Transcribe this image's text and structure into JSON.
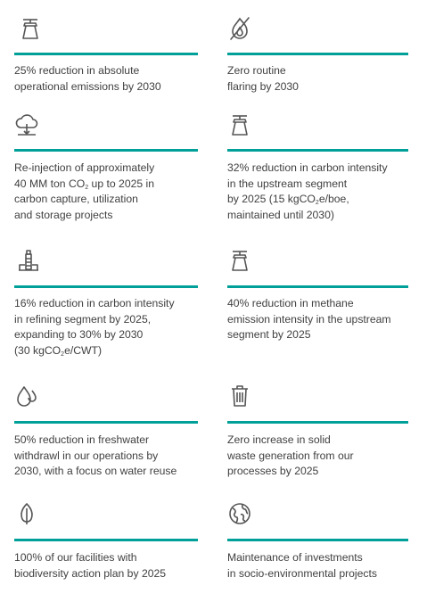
{
  "accent_color": "#00a099",
  "icon_color": "#555555",
  "cards": [
    {
      "icon": "chimney-flare-icon",
      "text": "25% reduction in absolute\noperational emissions by 2030"
    },
    {
      "icon": "no-flame-icon",
      "text": "Zero routine\nflaring by 2030"
    },
    {
      "icon": "cloud-injection-icon",
      "text_parts": [
        "Re-injection of approximately\n40 MM ton CO",
        "2",
        " up to 2025 in\ncarbon capture, utilization\nand storage projects"
      ]
    },
    {
      "icon": "chimney-icon",
      "text_parts": [
        "32% reduction in carbon intensity\nin the upstream segment\nby 2025 (15 kgCO",
        "2",
        "e/boe,\nmaintained until 2030)"
      ]
    },
    {
      "icon": "refinery-tower-icon",
      "text_parts": [
        "16% reduction in carbon intensity\nin refining segment by 2025,\nexpanding to 30% by 2030\n(30 kgCO",
        "2",
        "e/CWT)"
      ]
    },
    {
      "icon": "methane-chimney-icon",
      "text": "40% reduction in methane\nemission intensity in the upstream\nsegment by 2025"
    },
    {
      "icon": "water-drops-icon",
      "text": "50% reduction in freshwater\nwithdrawl in our operations by\n2030, with a focus on water reuse"
    },
    {
      "icon": "trash-bin-icon",
      "text": "Zero increase in solid\nwaste generation from our\nprocesses by 2025"
    },
    {
      "icon": "leaf-icon",
      "text": "100% of our facilities with\nbiodiversity action plan by 2025"
    },
    {
      "icon": "globe-icon",
      "text": "Maintenance of investments\nin socio-environmental projects"
    }
  ]
}
